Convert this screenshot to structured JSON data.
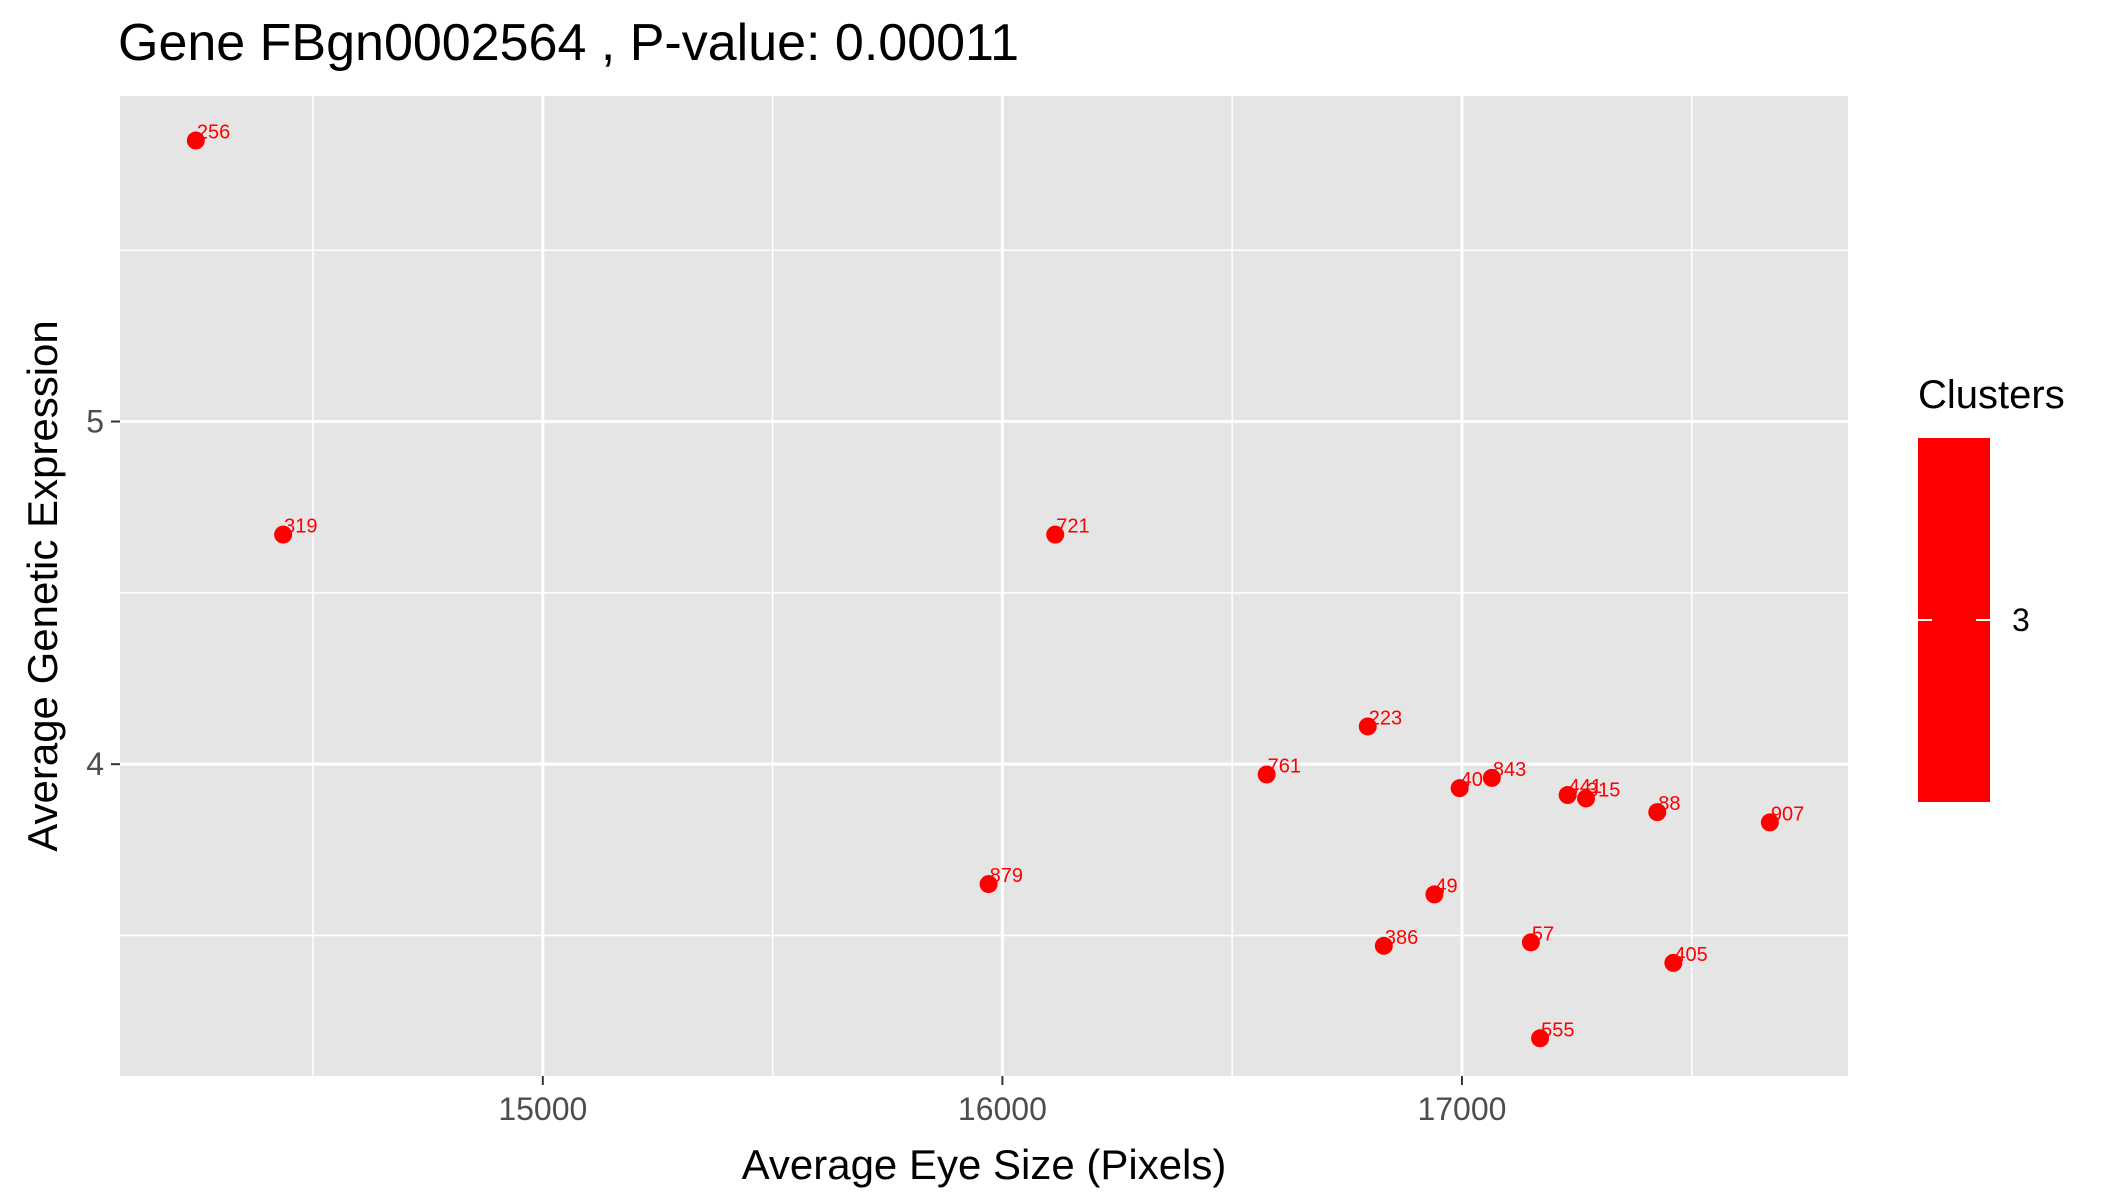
{
  "chart_data": {
    "type": "scatter",
    "title": "Gene FBgn0002564 , P-value: 0.00011",
    "xlabel": "Average Eye Size (Pixels)",
    "ylabel": "Average Genetic Expression",
    "xlim": [
      14080,
      17840
    ],
    "ylim": [
      3.09,
      5.95
    ],
    "x_ticks": [
      15000,
      16000,
      17000
    ],
    "x_tick_labels": [
      "15000",
      "16000",
      "17000"
    ],
    "y_ticks": [
      4,
      5
    ],
    "y_tick_labels": [
      "4",
      "5"
    ],
    "grid": true,
    "point_color": "#ff0000",
    "panel_background": "#e5e5e5",
    "grid_color": "#ffffff",
    "legend": {
      "title": "Clusters",
      "position": "right",
      "entries": [
        {
          "label": "3",
          "color": "#ff0000"
        }
      ]
    },
    "points": [
      {
        "label": "256",
        "x": 14245,
        "y": 5.82
      },
      {
        "label": "319",
        "x": 14435,
        "y": 4.67
      },
      {
        "label": "721",
        "x": 16115,
        "y": 4.67
      },
      {
        "label": "223",
        "x": 16795,
        "y": 4.11
      },
      {
        "label": "761",
        "x": 16575,
        "y": 3.97
      },
      {
        "label": "40",
        "x": 16995,
        "y": 3.93
      },
      {
        "label": "843",
        "x": 17065,
        "y": 3.96
      },
      {
        "label": "441",
        "x": 17230,
        "y": 3.91
      },
      {
        "label": "315",
        "x": 17270,
        "y": 3.9
      },
      {
        "label": "88",
        "x": 17425,
        "y": 3.86
      },
      {
        "label": "907",
        "x": 17670,
        "y": 3.83
      },
      {
        "label": "879",
        "x": 15970,
        "y": 3.65
      },
      {
        "label": "49",
        "x": 16940,
        "y": 3.62
      },
      {
        "label": "386",
        "x": 16830,
        "y": 3.47
      },
      {
        "label": "57",
        "x": 17150,
        "y": 3.48
      },
      {
        "label": "405",
        "x": 17460,
        "y": 3.42
      },
      {
        "label": "555",
        "x": 17170,
        "y": 3.2
      }
    ]
  }
}
